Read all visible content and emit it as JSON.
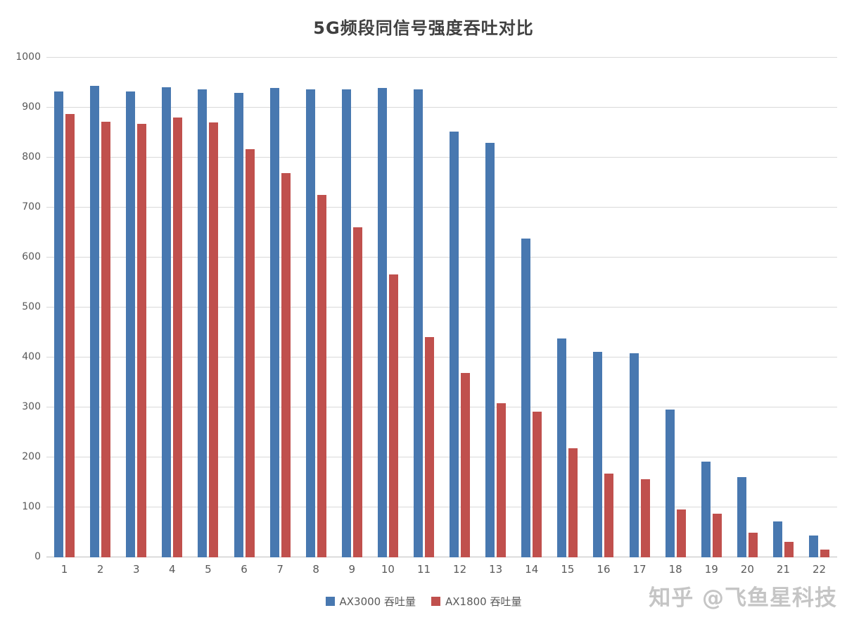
{
  "chart_data": {
    "type": "bar",
    "title": "5G频段同信号强度吞吐对比",
    "categories": [
      "1",
      "2",
      "3",
      "4",
      "5",
      "6",
      "7",
      "8",
      "9",
      "10",
      "11",
      "12",
      "13",
      "14",
      "15",
      "16",
      "17",
      "18",
      "19",
      "20",
      "21",
      "22"
    ],
    "series": [
      {
        "name": "AX3000 吞吐量",
        "color": "#4878b0",
        "values": [
          933,
          943,
          933,
          941,
          937,
          930,
          940,
          936,
          937,
          940,
          936,
          852,
          830,
          638,
          438,
          411,
          409,
          296,
          192,
          161,
          72,
          44
        ]
      },
      {
        "name": "AX1800 吞吐量",
        "color": "#c0504d",
        "values": [
          888,
          872,
          868,
          881,
          870,
          817,
          769,
          725,
          660,
          566,
          441,
          369,
          308,
          291,
          219,
          167,
          156,
          96,
          88,
          50,
          31,
          16
        ]
      }
    ],
    "xlabel": "",
    "ylabel": "",
    "ylim": [
      0,
      1000
    ],
    "ytick_interval": 100,
    "grid": true,
    "legend_position": "bottom"
  },
  "watermark": "知乎 @飞鱼星科技",
  "colors": {
    "grid": "#d9d9d9",
    "axis": "#bfbfbf",
    "text": "#595959",
    "title": "#404040"
  }
}
